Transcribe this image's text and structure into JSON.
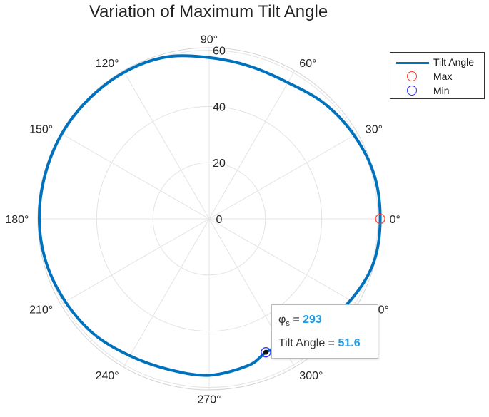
{
  "chart_data": {
    "type": "polar-line",
    "title": "Variation of Maximum Tilt Angle",
    "theta_unit": "degrees",
    "theta_ticks": [
      "0°",
      "30°",
      "60°",
      "90°",
      "120°",
      "150°",
      "180°",
      "210°",
      "240°",
      "270°",
      "300°",
      "330°"
    ],
    "theta_tick_values": [
      0,
      30,
      60,
      90,
      120,
      150,
      180,
      210,
      240,
      270,
      300,
      330
    ],
    "r_ticks": [
      "0",
      "20",
      "40",
      "60"
    ],
    "r_tick_values": [
      0,
      20,
      40,
      60
    ],
    "rlim": [
      0,
      60
    ],
    "grid": true,
    "legend": "top-right",
    "series": [
      {
        "name": "Tilt Angle",
        "color": "#0072bd",
        "theta": [
          0,
          15,
          30,
          45,
          60,
          75,
          90,
          105,
          120,
          135,
          150,
          165,
          180,
          195,
          210,
          225,
          240,
          255,
          270,
          285,
          293,
          300,
          315,
          330,
          345,
          360
        ],
        "r": [
          60.8,
          60.7,
          59.5,
          58.0,
          56.0,
          56.2,
          57.4,
          59.6,
          60.3,
          60.4,
          60.5,
          60.4,
          60.4,
          60.0,
          59.0,
          58.0,
          56.3,
          55.5,
          55.7,
          54.0,
          51.6,
          51.8,
          54.7,
          58.0,
          60.5,
          60.8
        ]
      }
    ],
    "markers": [
      {
        "name": "Max",
        "color": "#ff3b30",
        "theta": 0,
        "r": 60.8
      },
      {
        "name": "Min",
        "color": "#2e2eff",
        "theta": 293,
        "r": 51.6
      }
    ],
    "datatip": {
      "theta_label": "φ",
      "theta_subscript": "s",
      "theta_value": "293",
      "r_label": "Tilt Angle",
      "r_value": "51.6"
    }
  },
  "legend": {
    "line_label": "Tilt Angle",
    "max_label": "Max",
    "min_label": "Min"
  }
}
